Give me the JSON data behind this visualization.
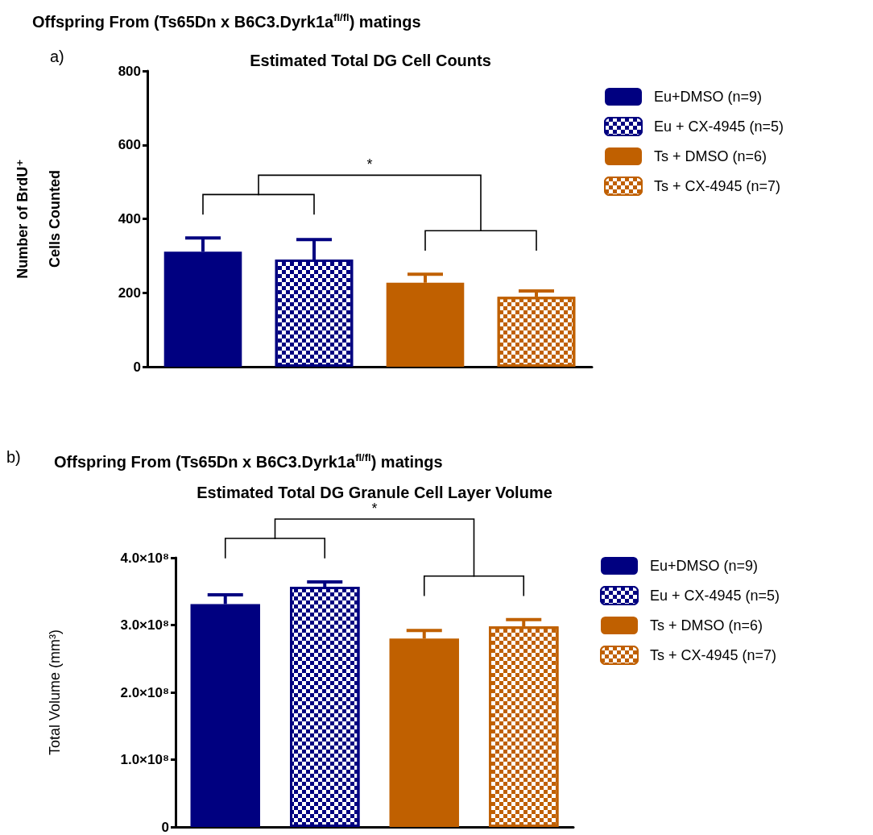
{
  "chart_data": [
    {
      "type": "bar",
      "title": "Offspring From (Ts65Dn x B6C3.Dyrk1a$^{fl/fl}$) matings",
      "subtitle": "Estimated Total DG Cell Counts",
      "ylabel": "Number of BrdU⁺\nCells Counted",
      "annotations": [
        "a)",
        "*"
      ],
      "categories": [
        null,
        null,
        null,
        null
      ],
      "series": [
        {
          "name": "Eu+DMSO (n=9)",
          "color": "#000080",
          "values": [
            311,
            null,
            null,
            null
          ],
          "errors": [
            [
              311,
              348
            ],
            null,
            null,
            null
          ]
        },
        {
          "name": "Eu + CX-4945 (n=5)",
          "color": "#000080",
          "values": [
            null,
            290,
            null,
            null
          ],
          "errors": [
            null,
            [
              290,
              344
            ],
            null,
            null
          ]
        },
        {
          "name": "Ts + DMSO (n=6)",
          "color": "#c06000",
          "values": [
            null,
            null,
            227,
            null
          ],
          "errors": [
            null,
            null,
            [
              227,
              250
            ],
            null
          ]
        },
        {
          "name": "Ts + CX-4945 (n=7)",
          "color": "#c06000",
          "values": [
            null,
            null,
            null,
            189
          ],
          "errors": [
            null,
            null,
            null,
            [
              189,
              205
            ]
          ]
        }
      ],
      "ylim": [
        0,
        800
      ],
      "yticks": [
        0,
        200,
        400,
        600,
        800
      ],
      "grid": false,
      "legend": "top right"
    },
    {
      "type": "bar",
      "title": "Offspring From (Ts65Dn x B6C3.Dyrk1a$^{fl/fl}$) matings",
      "subtitle": "Estimated Total DG Granule Cell Layer Volume",
      "ylabel": "Total Volume (mm³)",
      "annotations": [
        "b)",
        "*"
      ],
      "categories": [
        null,
        null,
        null,
        null
      ],
      "series": [
        {
          "name": "Eu+DMSO (n=9)",
          "color": "#000080",
          "values": [
            331000000,
            null,
            null,
            null
          ],
          "errors": [
            [
              331000000,
              345000000
            ],
            null,
            null,
            null
          ]
        },
        {
          "name": "Eu + CX-4945 (n=5)",
          "color": "#000080",
          "values": [
            null,
            357000000,
            null,
            null
          ],
          "errors": [
            null,
            [
              357000000,
              364000000
            ],
            null,
            null
          ]
        },
        {
          "name": "Ts + DMSO (n=6)",
          "color": "#c06000",
          "values": [
            null,
            null,
            280000000,
            null
          ],
          "errors": [
            null,
            null,
            [
              280000000,
              292000000
            ],
            null
          ]
        },
        {
          "name": "Ts + CX-4945 (n=7)",
          "color": "#c06000",
          "values": [
            null,
            null,
            null,
            298000000
          ],
          "errors": [
            null,
            null,
            null,
            [
              298000000,
              308000000
            ]
          ]
        }
      ],
      "ylim": [
        0,
        400000000
      ],
      "yticks": [
        0,
        {
          "value": 100000000,
          "label": "1.0×10⁸"
        },
        {
          "value": 200000000,
          "label": "2.0×10⁸"
        },
        {
          "value": 300000000,
          "label": "3.0×10⁸"
        },
        {
          "value": 400000000,
          "label": "4.0×10⁸"
        }
      ],
      "grid": false,
      "legend": "top right"
    }
  ]
}
